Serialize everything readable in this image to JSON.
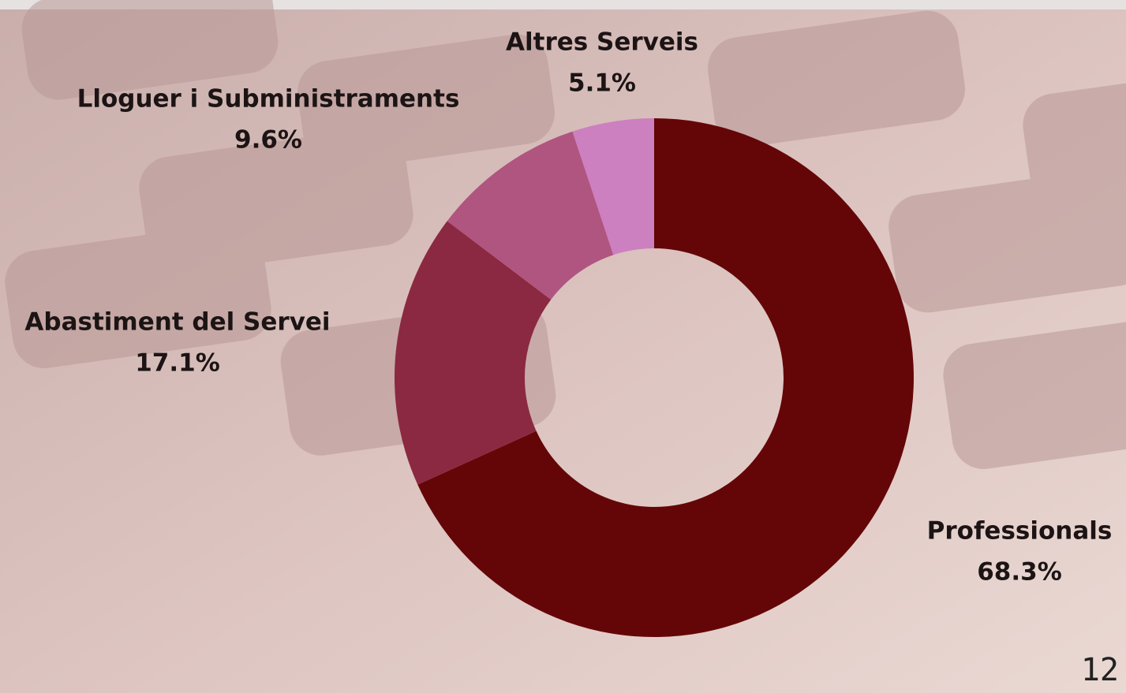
{
  "chart_data": {
    "type": "donut",
    "categories": [
      "Professionals",
      "Abastiment del Servei",
      "Lloguer i Subministraments",
      "Altres Serveis"
    ],
    "values": [
      68.3,
      17.1,
      9.6,
      5.1
    ],
    "value_labels": [
      "68.3%",
      "17.1%",
      "9.6%",
      "5.1%"
    ],
    "colors": [
      "#640607",
      "#8b2942",
      "#b05580",
      "#cc80c0"
    ]
  },
  "page_number": "12"
}
